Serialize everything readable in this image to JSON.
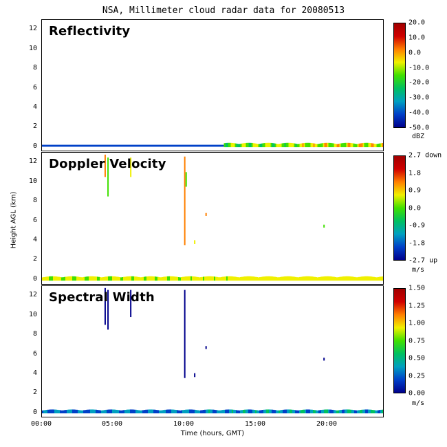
{
  "title": "NSA, Millimeter cloud radar data for 20080513",
  "ylabel": "Height AGL (km)",
  "xlabel": "Time (hours, GMT)",
  "yticks": [
    "12",
    "10",
    "8",
    "6",
    "4",
    "2",
    "0"
  ],
  "xticks": [
    "00:00",
    "05:00",
    "10:00",
    "15:00",
    "20:00"
  ],
  "panels": [
    {
      "label": "Reflectivity",
      "colorbar_ticks": [
        "20.0",
        "10.0",
        "0.0",
        "-10.0",
        "-20.0",
        "-30.0",
        "-40.0",
        "-50.0"
      ],
      "colorbar_unit": "dBZ"
    },
    {
      "label": "Doppler Velocity",
      "colorbar_ticks": [
        "2.7 down",
        "1.8",
        "0.9",
        "0.0",
        "-0.9",
        "-1.8",
        "-2.7 up"
      ],
      "colorbar_unit": "m/s"
    },
    {
      "label": "Spectral Width",
      "colorbar_ticks": [
        "1.50",
        "1.25",
        "1.00",
        "0.75",
        "0.50",
        "0.25",
        "0.00"
      ],
      "colorbar_unit": "m/s"
    }
  ],
  "colors": {
    "colormap": [
      "#00008c",
      "#0040c8",
      "#00a0c0",
      "#00c060",
      "#40e000",
      "#f0f000",
      "#ff8000",
      "#d00000",
      "#a00000"
    ],
    "reflectivity_scale": "#00c060",
    "velocity_scale": "#f0e000",
    "width_scale": "#0030b0"
  },
  "chart_data": [
    {
      "type": "heatmap",
      "name": "Reflectivity",
      "x_range_hours": [
        0,
        24
      ],
      "y_range_km": [
        -0.5,
        13
      ],
      "color_range": [
        -50,
        20
      ],
      "unit": "dBZ",
      "near_surface_echo": {
        "start_hour": 12.8,
        "end_hour": 24,
        "top_km": 0.3,
        "value_range": [
          -30,
          0
        ]
      },
      "surface_clutter": {
        "start_hour": 0,
        "end_hour": 12.8,
        "top_km": 0.1,
        "value": -45
      }
    },
    {
      "type": "heatmap",
      "name": "Doppler Velocity",
      "x_range_hours": [
        0,
        24
      ],
      "y_range_km": [
        -0.5,
        13
      ],
      "color_range": [
        -2.7,
        2.7
      ],
      "unit": "m/s",
      "near_surface_echo": {
        "start_hour": 0,
        "end_hour": 24,
        "top_km": 0.3,
        "value_range": [
          0,
          0.9
        ]
      },
      "sparse_returns": [
        {
          "hour": 4.4,
          "from_km": 10.5,
          "to_km": 12.8
        },
        {
          "hour": 4.6,
          "from_km": 8.5,
          "to_km": 12.5
        },
        {
          "hour": 6.2,
          "from_km": 10.5,
          "to_km": 12.5
        },
        {
          "hour": 10.0,
          "from_km": 3.5,
          "to_km": 12.6
        },
        {
          "hour": 10.1,
          "from_km": 9.5,
          "to_km": 11.0
        },
        {
          "hour": 10.7,
          "from_km": 3.6,
          "to_km": 4.0
        },
        {
          "hour": 11.5,
          "from_km": 6.5,
          "to_km": 6.8
        },
        {
          "hour": 19.8,
          "from_km": 5.3,
          "to_km": 5.6
        }
      ]
    },
    {
      "type": "heatmap",
      "name": "Spectral Width",
      "x_range_hours": [
        0,
        24
      ],
      "y_range_km": [
        -0.5,
        13
      ],
      "color_range": [
        0,
        1.5
      ],
      "unit": "m/s",
      "near_surface_echo": {
        "start_hour": 0,
        "end_hour": 24,
        "top_km": 0.25,
        "value_range": [
          0,
          0.5
        ]
      },
      "sparse_returns": [
        {
          "hour": 4.4,
          "from_km": 9.0,
          "to_km": 12.8
        },
        {
          "hour": 4.6,
          "from_km": 8.5,
          "to_km": 12.6
        },
        {
          "hour": 6.2,
          "from_km": 9.8,
          "to_km": 12.6
        },
        {
          "hour": 10.0,
          "from_km": 3.5,
          "to_km": 12.6
        },
        {
          "hour": 10.7,
          "from_km": 3.6,
          "to_km": 4.0
        },
        {
          "hour": 11.5,
          "from_km": 6.5,
          "to_km": 6.8
        },
        {
          "hour": 19.8,
          "from_km": 5.3,
          "to_km": 5.6
        }
      ]
    }
  ]
}
